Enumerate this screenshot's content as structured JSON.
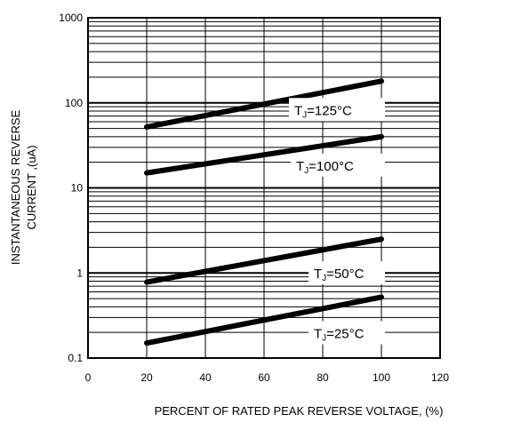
{
  "chart_data": {
    "type": "line",
    "title": "",
    "xlabel": "PERCENT OF RATED PEAK REVERSE VOLTAGE, (%)",
    "ylabel_lines": [
      "INSTANTANEOUS REVERSE",
      "CURRENT ,(uA)"
    ],
    "xlim": [
      0,
      120
    ],
    "ylim": [
      0.1,
      1000
    ],
    "yscale": "log",
    "x_ticks": [
      0,
      20,
      40,
      60,
      80,
      100,
      120
    ],
    "x_tick_labels": [
      "0",
      "20",
      "40",
      "60",
      "80",
      "100",
      "120"
    ],
    "y_ticks": [
      0.1,
      1,
      10,
      100,
      1000
    ],
    "y_tick_labels": [
      "0.1",
      "1",
      "10",
      "100",
      "1000"
    ],
    "grid": true,
    "colors": {
      "line": "#000000",
      "grid": "#000000",
      "background": "#ffffff"
    },
    "series": [
      {
        "name": "TJ=125°C",
        "label_main": "T",
        "label_sub": "J",
        "label_rest": "=125°C",
        "x": [
          20,
          100
        ],
        "y": [
          52,
          180
        ]
      },
      {
        "name": "TJ=100°C",
        "label_main": "T",
        "label_sub": "J",
        "label_rest": "=100°C",
        "x": [
          20,
          100
        ],
        "y": [
          15,
          40
        ]
      },
      {
        "name": "TJ=50°C",
        "label_main": "T",
        "label_sub": "J",
        "label_rest": "=50°C",
        "x": [
          20,
          100
        ],
        "y": [
          0.78,
          2.5
        ]
      },
      {
        "name": "TJ=25°C",
        "label_main": "T",
        "label_sub": "J",
        "label_rest": "=25°C",
        "x": [
          20,
          100
        ],
        "y": [
          0.15,
          0.52
        ]
      }
    ]
  }
}
